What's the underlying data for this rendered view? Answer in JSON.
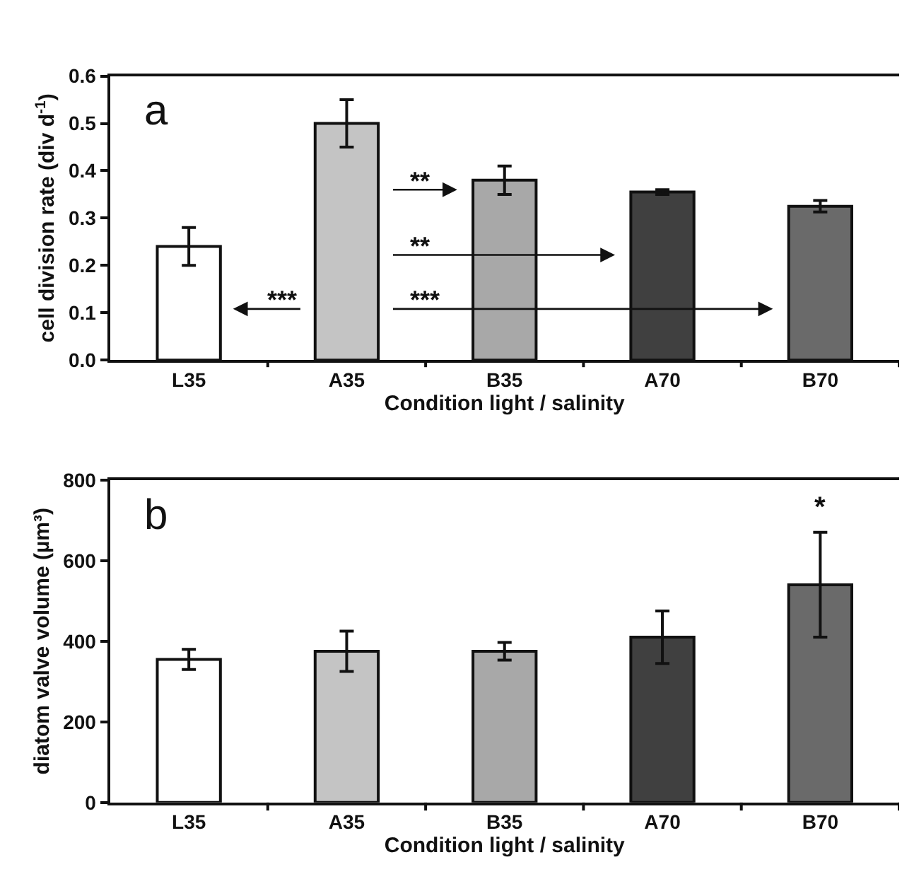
{
  "chart_data": [
    {
      "type": "bar",
      "title": "a",
      "xlabel": "Condition light / salinity",
      "ylabel": "cell division rate (div d$^{-1}$)",
      "categories": [
        "L35",
        "A35",
        "B35",
        "A70",
        "B70"
      ],
      "values": [
        0.24,
        0.5,
        0.38,
        0.355,
        0.325
      ],
      "errors": [
        0.04,
        0.05,
        0.03,
        0.005,
        0.012
      ],
      "colors": [
        "#ffffff",
        "#c4c4c4",
        "#a8a8a8",
        "#404040",
        "#6a6a6a"
      ],
      "ylim": [
        0,
        0.6
      ],
      "yticks": [
        {
          "value": 0,
          "label": "0.0"
        },
        {
          "value": 0.1,
          "label": "0.1"
        },
        {
          "value": 0.2,
          "label": "0.2"
        },
        {
          "value": 0.3,
          "label": "0.3"
        },
        {
          "value": 0.4,
          "label": "0.4"
        },
        {
          "value": 0.5,
          "label": "0.5"
        },
        {
          "value": 0.6,
          "label": "0.6"
        }
      ],
      "annotations": [
        "**",
        "**",
        "***",
        "***"
      ]
    },
    {
      "type": "bar",
      "title": "b",
      "xlabel": "Condition light / salinity",
      "ylabel": "diatom valve volume (µm³)",
      "categories": [
        "L35",
        "A35",
        "B35",
        "A70",
        "B70"
      ],
      "values": [
        355,
        375,
        375,
        410,
        540
      ],
      "errors": [
        25,
        50,
        22,
        65,
        130
      ],
      "colors": [
        "#ffffff",
        "#c4c4c4",
        "#a8a8a8",
        "#404040",
        "#6a6a6a"
      ],
      "ylim": [
        0,
        800
      ],
      "yticks": [
        0,
        200,
        400,
        600,
        800
      ],
      "annotations": [
        "*"
      ]
    }
  ]
}
